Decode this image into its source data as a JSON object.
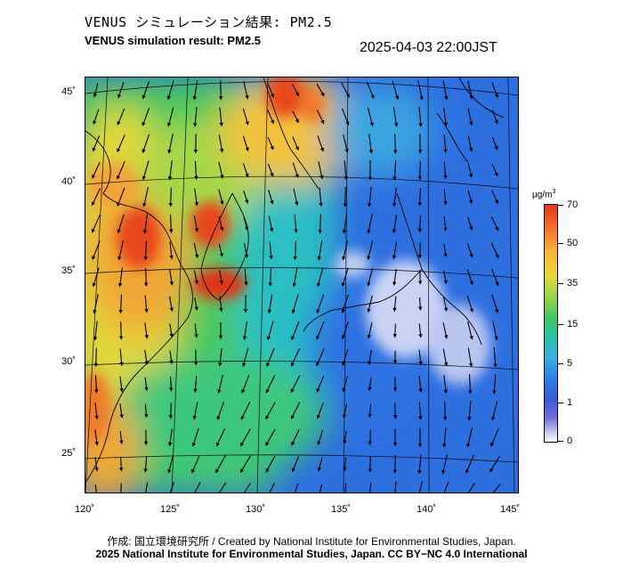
{
  "header": {
    "title_ja": "VENUS シミュレーション結果: PM2.5",
    "title_en": "VENUS simulation result: PM2.5",
    "timestamp": "2025-04-03 22:00JST"
  },
  "map": {
    "region": "East Asia (Japan, Korea, eastern China)",
    "variable": "PM2.5",
    "lat_labels": [
      "45˚",
      "40˚",
      "35˚",
      "30˚",
      "25˚"
    ],
    "lon_labels": [
      "120˚",
      "125˚",
      "130˚",
      "135˚",
      "140˚",
      "145˚"
    ],
    "wind_vectors": "shown as black arrows"
  },
  "colorbar": {
    "unit": "μg/m",
    "unit_superscript": "3",
    "labels": [
      "70",
      "50",
      "35",
      "15",
      "5",
      "1",
      "0"
    ],
    "colors": {
      "high": "#e8361c",
      "mid_high": "#f6b63a",
      "mid": "#3fc76a",
      "low": "#2f7de6",
      "zero": "#ffffff"
    }
  },
  "footer": {
    "credit_line1": "作成: 国立環境研究所 / Created by National Institute for Environmental Studies, Japan.",
    "credit_line2": "2025 National Institute for Environmental Studies, Japan. CC BY−NC 4.0 International"
  }
}
